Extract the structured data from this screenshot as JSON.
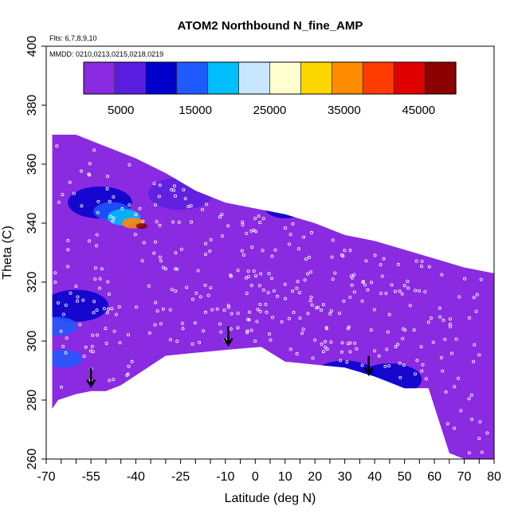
{
  "chart_data": {
    "type": "heatmap",
    "title": "ATOM2 Northbound N_fine_AMP",
    "annotations": [
      "Flts: 6,7,8,9,10",
      "MMDD: 0210,0213,0215,0218,0219"
    ],
    "xlabel": "Latitude (deg N)",
    "ylabel": "Theta (C)",
    "xlim": [
      -70,
      80
    ],
    "ylim": [
      260,
      400
    ],
    "x_ticks": [
      -70,
      -55,
      -40,
      -25,
      -10,
      0,
      10,
      20,
      30,
      40,
      50,
      60,
      70,
      80
    ],
    "x_ticks_labels": [
      "-70",
      "-55",
      "-40",
      "-25",
      "-10",
      "0",
      "10",
      "20",
      "30",
      "40",
      "50",
      "60",
      "70",
      "80"
    ],
    "y_ticks": [
      260,
      280,
      300,
      320,
      340,
      360,
      380,
      400
    ],
    "y_ticks_labels": [
      "260",
      "280",
      "300",
      "320",
      "340",
      "360",
      "380",
      "400"
    ],
    "colorbar": {
      "range": [
        0,
        50000
      ],
      "tick_values": [
        5000,
        15000,
        25000,
        35000,
        45000
      ],
      "tick_labels": [
        "5000",
        "15000",
        "25000",
        "35000",
        "45000"
      ],
      "colors": [
        "#8a2be2",
        "#5a1ee0",
        "#0000cd",
        "#1e5aff",
        "#00bfff",
        "#c8e6ff",
        "#ffffd0",
        "#ffd700",
        "#ff8c00",
        "#ff3c00",
        "#e00000",
        "#8b0000"
      ]
    },
    "envelope": {
      "top": [
        [
          -68,
          370
        ],
        [
          -60,
          370
        ],
        [
          -50,
          366
        ],
        [
          -40,
          362
        ],
        [
          -30,
          357
        ],
        [
          -20,
          351
        ],
        [
          -10,
          347
        ],
        [
          0,
          345
        ],
        [
          10,
          343
        ],
        [
          20,
          340
        ],
        [
          30,
          336
        ],
        [
          40,
          334
        ],
        [
          50,
          331
        ],
        [
          60,
          328
        ],
        [
          70,
          325
        ],
        [
          80,
          323
        ]
      ],
      "bottom": [
        [
          80,
          260
        ],
        [
          70,
          260
        ],
        [
          65,
          262
        ],
        [
          58,
          284
        ],
        [
          50,
          284
        ],
        [
          40,
          288
        ],
        [
          30,
          291
        ],
        [
          20,
          292
        ],
        [
          10,
          293
        ],
        [
          2,
          298
        ],
        [
          -10,
          297
        ],
        [
          -20,
          296
        ],
        [
          -30,
          295
        ],
        [
          -45,
          285
        ],
        [
          -50,
          283
        ],
        [
          -55,
          283
        ],
        [
          -60,
          282
        ],
        [
          -66,
          280
        ],
        [
          -68,
          277
        ]
      ]
    },
    "background_value": 4000,
    "features": [
      {
        "desc": "max near",
        "lat": -38,
        "theta": 339,
        "value": 47000
      },
      {
        "lat": -41,
        "theta": 340,
        "value": 34000
      },
      {
        "lat": -44,
        "theta": 342,
        "value": 20000
      },
      {
        "lat": -48,
        "theta": 344,
        "value": 15000
      },
      {
        "lat": -52,
        "theta": 347,
        "value": 9000
      },
      {
        "lat": 10,
        "theta": 345,
        "value": 12000
      },
      {
        "lat": -66,
        "theta": 305,
        "value": 14000
      },
      {
        "lat": -64,
        "theta": 294,
        "value": 16000
      },
      {
        "lat": -60,
        "theta": 312,
        "value": 9000
      },
      {
        "lat": -25,
        "theta": 350,
        "value": 8000
      },
      {
        "lat": 30,
        "theta": 288,
        "value": 9000
      },
      {
        "lat": 45,
        "theta": 287,
        "value": 9000
      }
    ],
    "arrows": [
      {
        "lat": -55,
        "theta": 285
      },
      {
        "lat": -9,
        "theta": 299
      },
      {
        "lat": 38,
        "theta": 289
      }
    ],
    "grid": false
  }
}
